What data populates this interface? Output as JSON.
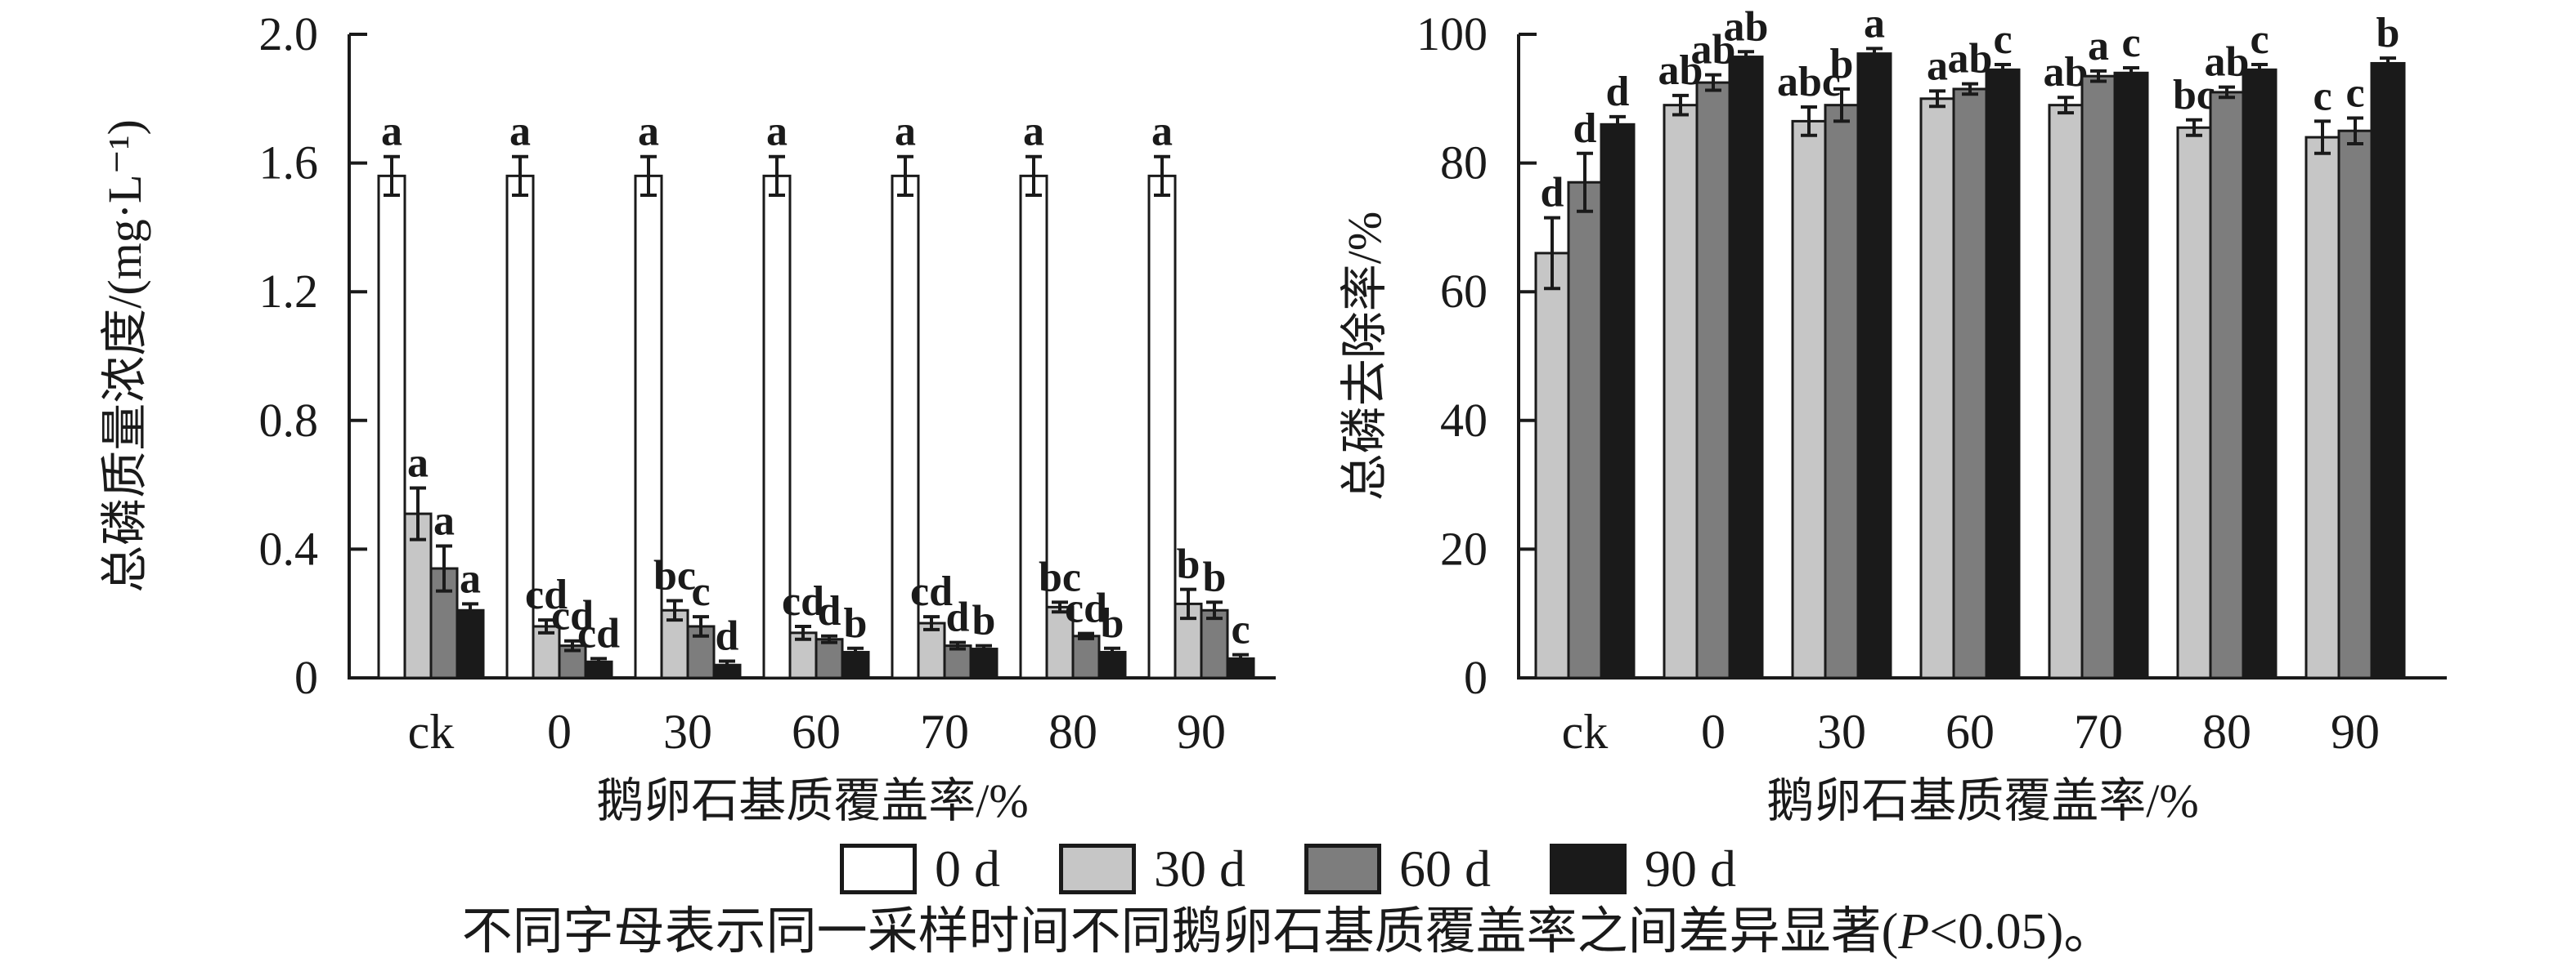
{
  "figure_title": "",
  "chart_data": [
    {
      "id": "tp_concentration",
      "type": "bar",
      "title": "",
      "ylabel": "总磷质量浓度/(mg·L⁻¹)",
      "xlabel": "鹅卵石基质覆盖率/%",
      "ylim": [
        0,
        2.0
      ],
      "grid": false,
      "yticks": [
        {
          "v": 0,
          "label": "0"
        },
        {
          "v": 0.4,
          "label": "0.4"
        },
        {
          "v": 0.8,
          "label": "0.8"
        },
        {
          "v": 1.2,
          "label": "1.2"
        },
        {
          "v": 1.6,
          "label": "1.6"
        },
        {
          "v": 2.0,
          "label": "2.0"
        }
      ],
      "categories": [
        "ck",
        "0",
        "30",
        "60",
        "70",
        "80",
        "90"
      ],
      "series": [
        {
          "name": "0 d",
          "color": "#ffffff",
          "values": [
            1.56,
            1.56,
            1.56,
            1.56,
            1.56,
            1.56,
            1.56
          ],
          "errors": [
            0.06,
            0.06,
            0.06,
            0.06,
            0.06,
            0.06,
            0.06
          ],
          "letters": [
            "a",
            "a",
            "a",
            "a",
            "a",
            "a",
            "a"
          ]
        },
        {
          "name": "30 d",
          "color": "#c6c6c6",
          "values": [
            0.51,
            0.16,
            0.21,
            0.14,
            0.17,
            0.22,
            0.23
          ],
          "errors": [
            0.08,
            0.02,
            0.03,
            0.02,
            0.02,
            0.015,
            0.045
          ],
          "letters": [
            "a",
            "cd",
            "bc",
            "cd",
            "cd",
            "bc",
            "b"
          ]
        },
        {
          "name": "60 d",
          "color": "#7d7d7d",
          "values": [
            0.34,
            0.1,
            0.16,
            0.12,
            0.1,
            0.13,
            0.21
          ],
          "errors": [
            0.07,
            0.015,
            0.03,
            0.01,
            0.01,
            0.008,
            0.025
          ],
          "letters": [
            "a",
            "cd",
            "c",
            "d",
            "d",
            "cd",
            "b"
          ]
        },
        {
          "name": "90 d",
          "color": "#1a1a1a",
          "values": [
            0.21,
            0.05,
            0.04,
            0.08,
            0.09,
            0.08,
            0.06
          ],
          "errors": [
            0.02,
            0.01,
            0.012,
            0.012,
            0.01,
            0.012,
            0.012
          ],
          "letters": [
            "a",
            "cd",
            "d",
            "b",
            "b",
            "b",
            "c"
          ]
        }
      ]
    },
    {
      "id": "tp_removal",
      "type": "bar",
      "title": "",
      "ylabel": "总磷去除率/%",
      "xlabel": "鹅卵石基质覆盖率/%",
      "ylim": [
        0,
        100
      ],
      "grid": false,
      "yticks": [
        {
          "v": 0,
          "label": "0"
        },
        {
          "v": 20,
          "label": "20"
        },
        {
          "v": 40,
          "label": "40"
        },
        {
          "v": 60,
          "label": "60"
        },
        {
          "v": 80,
          "label": "80"
        },
        {
          "v": 100,
          "label": "100"
        }
      ],
      "categories": [
        "ck",
        "0",
        "30",
        "60",
        "70",
        "80",
        "90"
      ],
      "series": [
        {
          "name": "30 d",
          "color": "#c6c6c6",
          "values": [
            66,
            89,
            86.5,
            90,
            89,
            85.5,
            84
          ],
          "errors": [
            5.5,
            1.5,
            2.2,
            1.2,
            1.2,
            1.2,
            2.5
          ],
          "letters": [
            "d",
            "ab",
            "abc",
            "a",
            "ab",
            "bc",
            "c"
          ]
        },
        {
          "name": "60 d",
          "color": "#7d7d7d",
          "values": [
            77,
            92.5,
            89,
            91.5,
            93.5,
            91,
            85
          ],
          "errors": [
            4.5,
            1.2,
            2.5,
            0.8,
            0.8,
            0.8,
            2.0
          ],
          "letters": [
            "d",
            "ab",
            "b",
            "ab",
            "a",
            "ab",
            "c"
          ]
        },
        {
          "name": "90 d",
          "color": "#1a1a1a",
          "values": [
            86,
            96.5,
            97,
            94.5,
            94,
            94.5,
            95.5
          ],
          "errors": [
            1.2,
            0.8,
            0.8,
            0.8,
            0.8,
            0.8,
            0.8
          ],
          "letters": [
            "d",
            "ab",
            "a",
            "c",
            "c",
            "c",
            "b"
          ]
        }
      ]
    }
  ],
  "legend": {
    "items": [
      {
        "label": "0 d",
        "color": "#ffffff"
      },
      {
        "label": "30 d",
        "color": "#c6c6c6"
      },
      {
        "label": "60 d",
        "color": "#7d7d7d"
      },
      {
        "label": "90 d",
        "color": "#1a1a1a"
      }
    ]
  },
  "caption": {
    "before_p": "不同字母表示同一采样时间不同鹅卵石基质覆盖率之间差异显著(",
    "p": "P",
    "after_p": "<0.05)。"
  },
  "colors": {
    "ink": "#1a1a1a",
    "background": "#ffffff"
  }
}
